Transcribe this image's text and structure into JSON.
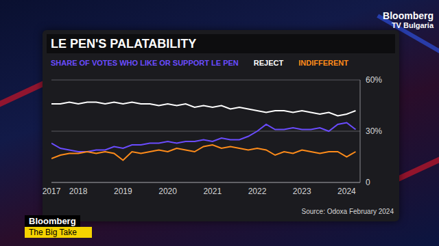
{
  "chart_data": {
    "type": "line",
    "title": "LE PEN'S PALATABILITY",
    "x": [
      2017.4,
      2017.6,
      2017.8,
      2018.0,
      2018.2,
      2018.4,
      2018.6,
      2018.8,
      2019.0,
      2019.2,
      2019.4,
      2019.6,
      2019.8,
      2020.0,
      2020.2,
      2020.4,
      2020.6,
      2020.8,
      2021.0,
      2021.2,
      2021.4,
      2021.6,
      2021.8,
      2022.0,
      2022.2,
      2022.4,
      2022.6,
      2022.8,
      2023.0,
      2023.2,
      2023.4,
      2023.6,
      2023.8,
      2024.0,
      2024.2
    ],
    "series": [
      {
        "name": "SHARE OF VOTES WHO LIKE OR SUPPORT LE PEN",
        "color": "#6a4cff",
        "values": [
          23,
          20,
          19,
          18,
          18,
          19,
          19,
          21,
          20,
          22,
          22,
          23,
          23,
          24,
          23,
          24,
          24,
          25,
          24,
          26,
          25,
          25,
          27,
          30,
          34,
          31,
          31,
          32,
          31,
          31,
          32,
          30,
          34,
          35,
          31
        ]
      },
      {
        "name": "REJECT",
        "color": "#ffffff",
        "values": [
          46,
          46,
          47,
          46,
          47,
          47,
          46,
          47,
          46,
          47,
          46,
          46,
          45,
          46,
          45,
          46,
          44,
          45,
          44,
          45,
          43,
          44,
          43,
          42,
          41,
          42,
          42,
          41,
          42,
          41,
          40,
          41,
          39,
          40,
          42
        ]
      },
      {
        "name": "INDIFFERENT",
        "color": "#ff8c1a",
        "values": [
          14,
          16,
          17,
          17,
          18,
          17,
          18,
          17,
          13,
          18,
          17,
          18,
          19,
          18,
          20,
          19,
          18,
          21,
          22,
          20,
          21,
          20,
          19,
          20,
          19,
          16,
          18,
          17,
          19,
          18,
          17,
          18,
          18,
          15,
          18
        ]
      }
    ],
    "xlim": [
      2017.4,
      2024.3
    ],
    "xticks": [
      {
        "value": 2017.4,
        "label": "2017"
      },
      2018,
      2019,
      2020,
      2021,
      2022,
      2023,
      2024
    ],
    "ylim": [
      0,
      60
    ],
    "yticks": [
      0,
      {
        "value": 30,
        "label": "30%"
      },
      {
        "value": 60,
        "label": "60%"
      }
    ],
    "grid": true,
    "annotations": [
      "Source: Odoxa February 2024"
    ]
  },
  "branding": {
    "top_right": [
      "Bloomberg",
      "TV Bulgaria"
    ],
    "bottom_left": [
      "Bloomberg",
      "The Big Take"
    ]
  }
}
